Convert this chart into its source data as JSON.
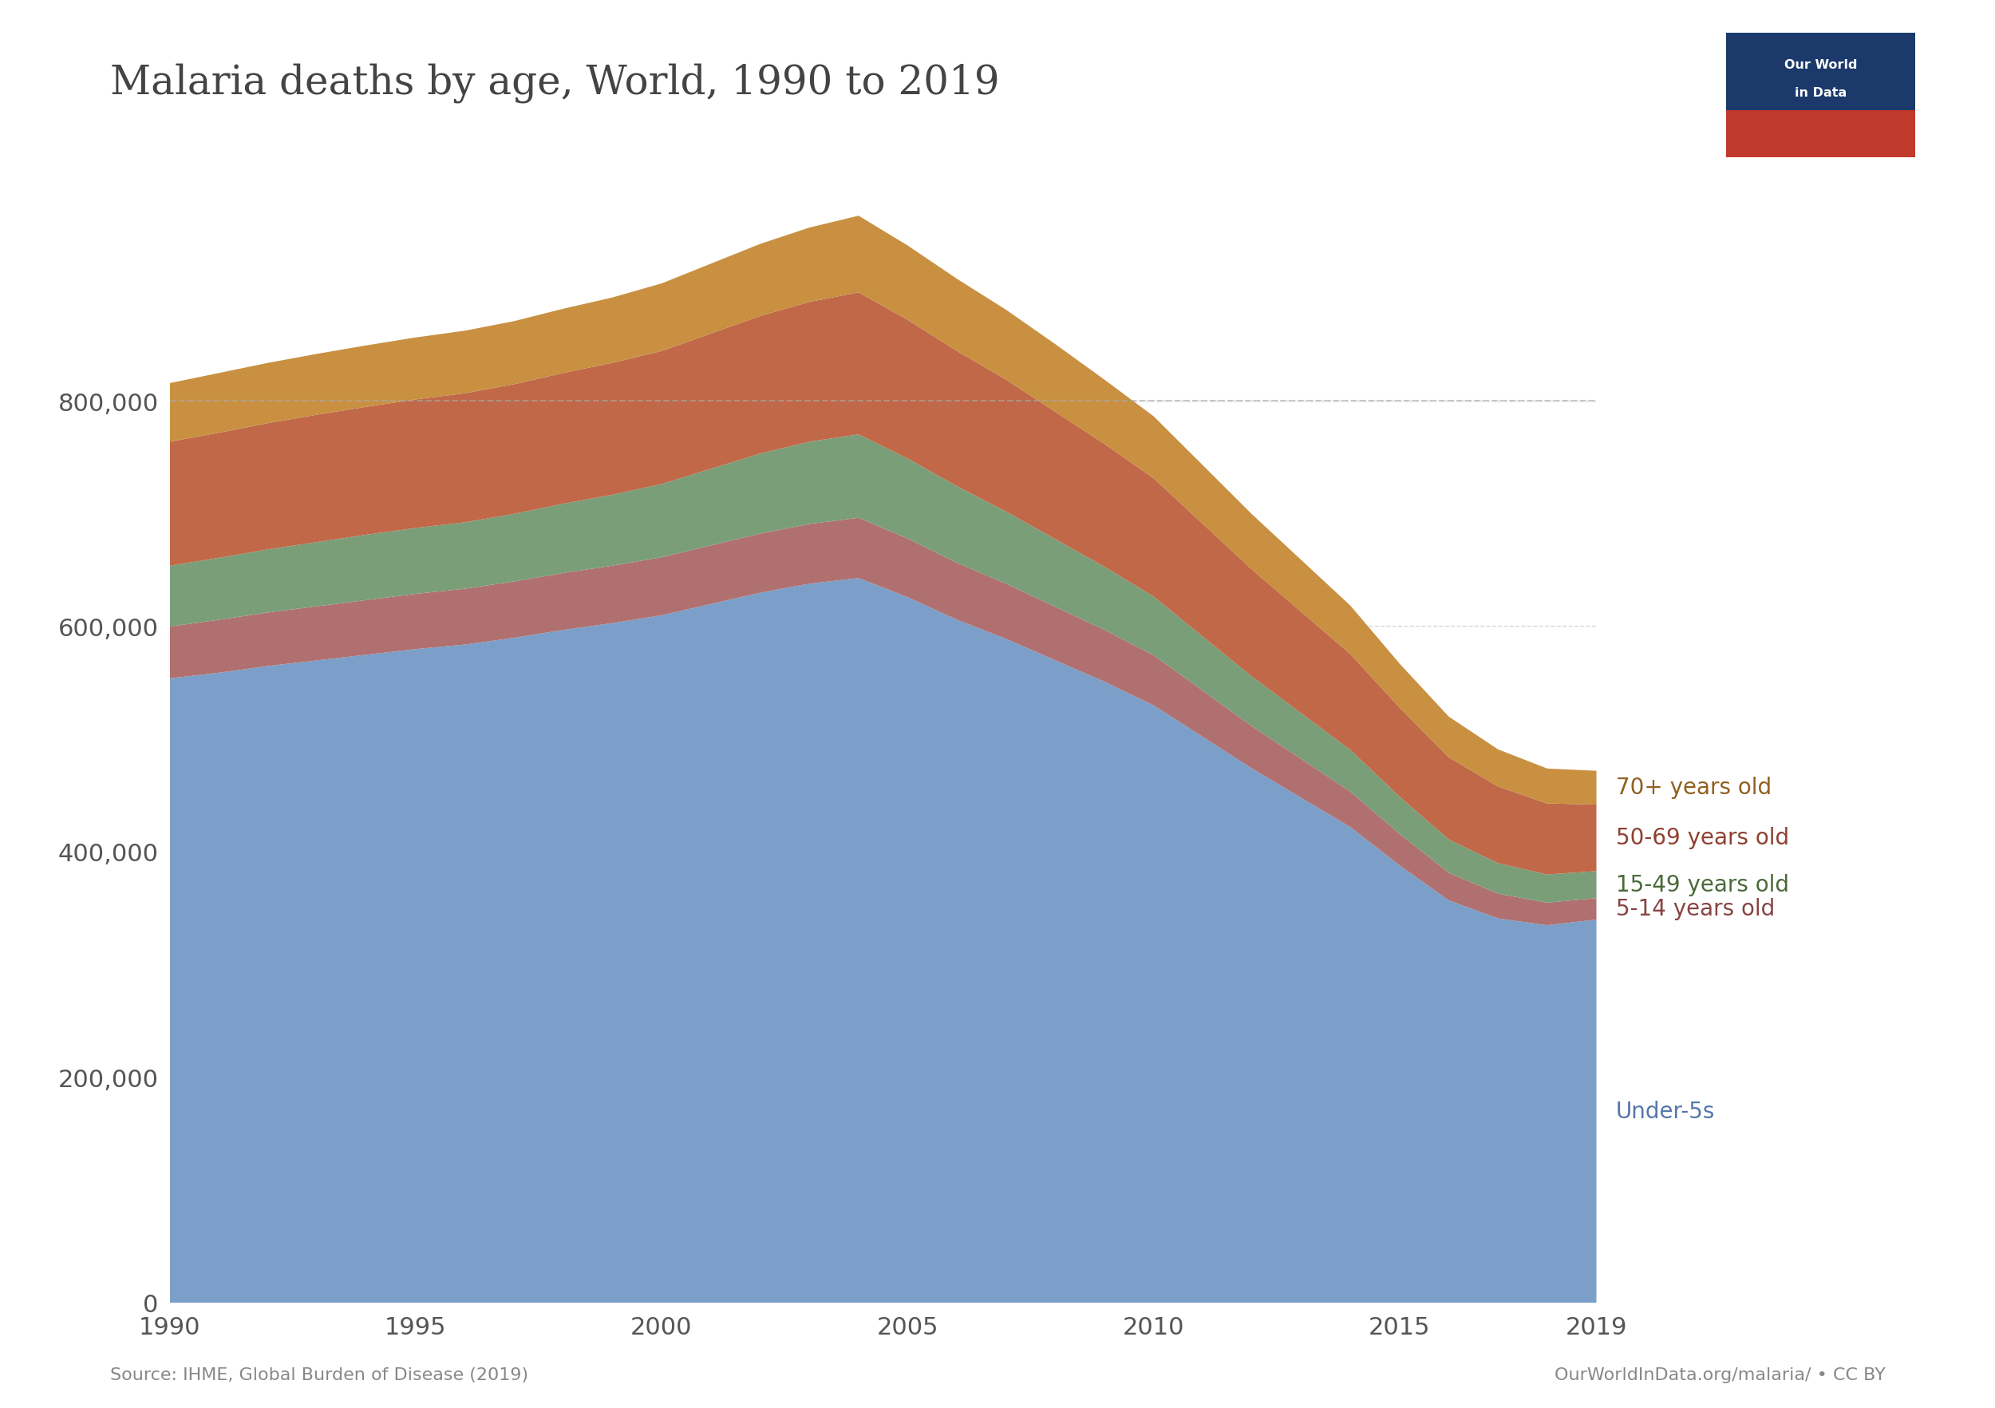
{
  "title": "Malaria deaths by age, World, 1990 to 2019",
  "source_left": "Source: IHME, Global Burden of Disease (2019)",
  "source_right": "OurWorldInData.org/malaria/ • CC BY",
  "years": [
    1990,
    1991,
    1992,
    1993,
    1994,
    1995,
    1996,
    1997,
    1998,
    1999,
    2000,
    2001,
    2002,
    2003,
    2004,
    2005,
    2006,
    2007,
    2008,
    2009,
    2010,
    2011,
    2012,
    2013,
    2014,
    2015,
    2016,
    2017,
    2018,
    2019
  ],
  "under5": [
    554000,
    559000,
    565000,
    570000,
    575000,
    580000,
    584000,
    590000,
    597000,
    603000,
    610000,
    620000,
    630000,
    638000,
    643000,
    626000,
    606000,
    589000,
    570000,
    551000,
    530000,
    502000,
    474000,
    448000,
    422000,
    388000,
    357000,
    341000,
    335000,
    340000
  ],
  "age5_14": [
    46000,
    47000,
    47500,
    48000,
    48500,
    49000,
    49500,
    50000,
    50500,
    51000,
    51500,
    52000,
    52500,
    53000,
    53500,
    52000,
    50500,
    49000,
    47500,
    46000,
    44500,
    41000,
    37500,
    34500,
    31500,
    28000,
    24500,
    22000,
    20000,
    19000
  ],
  "age15_49": [
    54000,
    55000,
    56000,
    57000,
    58000,
    58500,
    59000,
    60000,
    61500,
    63000,
    65000,
    68000,
    71000,
    73000,
    74000,
    71000,
    68000,
    64000,
    60000,
    56000,
    52000,
    48000,
    44000,
    40500,
    37000,
    33000,
    29500,
    27000,
    25000,
    24000
  ],
  "age50_69": [
    110000,
    111000,
    112000,
    113000,
    113500,
    114000,
    114500,
    115000,
    116000,
    117000,
    118000,
    120000,
    122000,
    124000,
    126000,
    123000,
    120000,
    117000,
    113000,
    109000,
    105000,
    100000,
    95000,
    90000,
    85000,
    79000,
    73000,
    68000,
    63000,
    59000
  ],
  "age70plus": [
    52000,
    53000,
    53500,
    54000,
    54500,
    55000,
    55500,
    56000,
    57000,
    58000,
    60000,
    62000,
    64000,
    66000,
    68000,
    66000,
    64000,
    62000,
    60000,
    57000,
    55000,
    52000,
    49000,
    46000,
    43000,
    39000,
    36000,
    33000,
    31000,
    30000
  ],
  "colors": {
    "under5": "#7b9fc8",
    "age5_14": "#b07070",
    "age15_49": "#7a9e78",
    "age50_69": "#c06848",
    "age70plus": "#c89040"
  },
  "label_colors": {
    "under5": "#5577aa",
    "age5_14": "#884444",
    "age15_49": "#4a6a3a",
    "age50_69": "#904030",
    "age70plus": "#906020"
  },
  "labels": {
    "under5": "Under-5s",
    "age5_14": "5-14 years old",
    "age15_49": "15-49 years old",
    "age50_69": "50-69 years old",
    "age70plus": "70+ years old"
  },
  "ylim": [
    0,
    1000000
  ],
  "yticks": [
    0,
    200000,
    400000,
    600000,
    800000
  ],
  "background_color": "#ffffff",
  "grid_color": "#cccccc",
  "dashed_line_y": 800000
}
